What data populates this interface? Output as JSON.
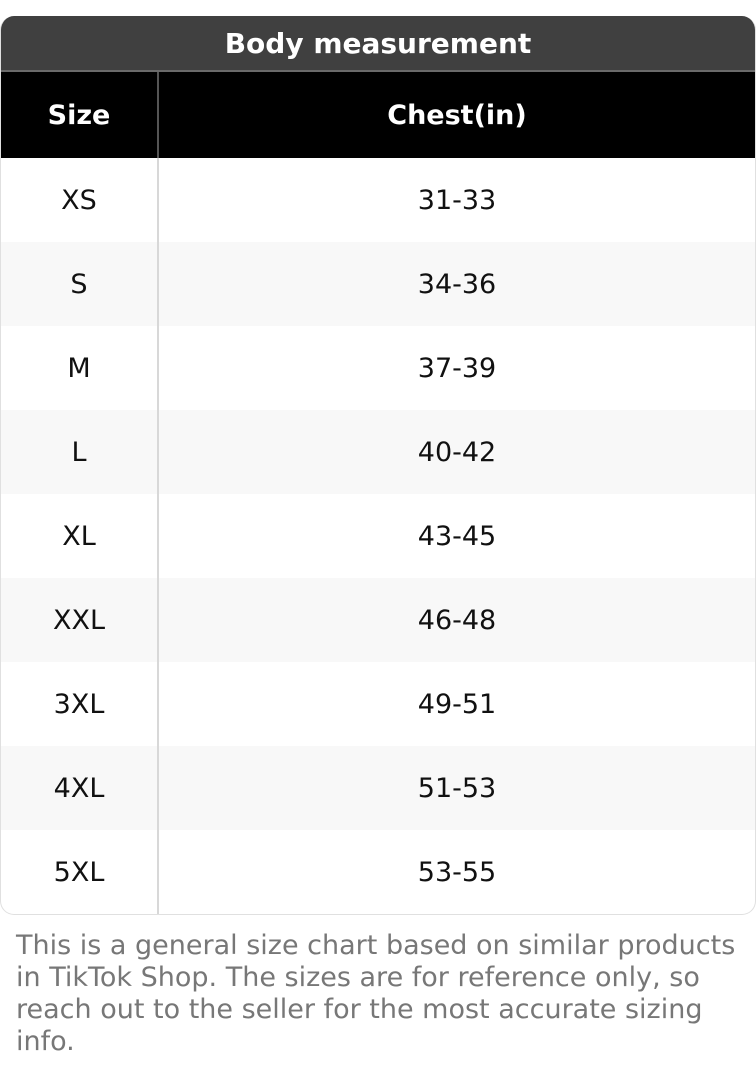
{
  "title": "Body measurement",
  "columns": [
    "Size",
    "Chest(in)"
  ],
  "rows": [
    [
      "XS",
      "31-33"
    ],
    [
      "S",
      "34-36"
    ],
    [
      "M",
      "37-39"
    ],
    [
      "L",
      "40-42"
    ],
    [
      "XL",
      "43-45"
    ],
    [
      "XXL",
      "46-48"
    ],
    [
      "3XL",
      "49-51"
    ],
    [
      "4XL",
      "51-53"
    ],
    [
      "5XL",
      "53-55"
    ]
  ],
  "note": "This is a general size chart based on similar products in TikTok Shop. The sizes are for reference only, so reach out to the seller for the most accurate sizing info."
}
